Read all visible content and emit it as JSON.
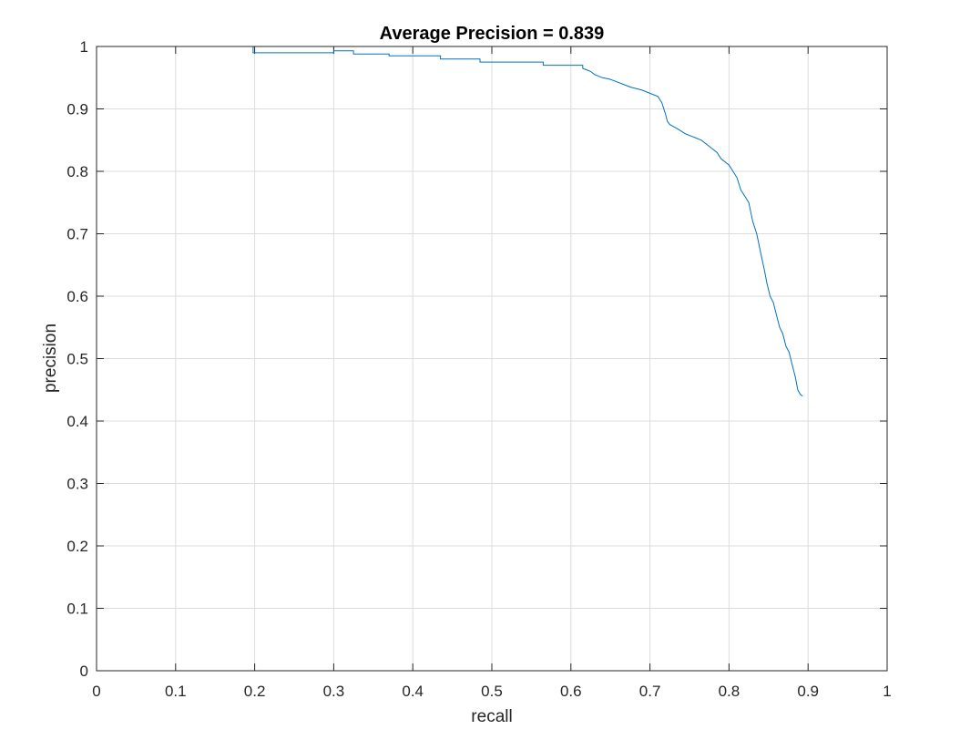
{
  "chart_data": {
    "type": "line",
    "title": "Average Precision = 0.839",
    "xlabel": "recall",
    "ylabel": "precision",
    "xlim": [
      0,
      1
    ],
    "ylim": [
      0,
      1
    ],
    "xticks": [
      "0",
      "0.1",
      "0.2",
      "0.3",
      "0.4",
      "0.5",
      "0.6",
      "0.7",
      "0.8",
      "0.9",
      "1"
    ],
    "yticks": [
      "0",
      "0.1",
      "0.2",
      "0.3",
      "0.4",
      "0.5",
      "0.6",
      "0.7",
      "0.8",
      "0.9",
      "1"
    ],
    "grid": true,
    "line_color": "#0072bd",
    "series": [
      {
        "x": [
          0,
          0.198,
          0.198,
          0.3,
          0.3,
          0.325,
          0.325,
          0.37,
          0.37,
          0.41,
          0.41,
          0.435,
          0.435,
          0.485,
          0.485,
          0.52,
          0.52,
          0.565,
          0.565,
          0.585,
          0.585,
          0.615,
          0.615,
          0.625,
          0.63,
          0.64,
          0.648,
          0.655,
          0.665,
          0.675,
          0.69,
          0.7,
          0.71,
          0.715,
          0.72,
          0.722,
          0.725,
          0.735,
          0.745,
          0.755,
          0.765,
          0.775,
          0.785,
          0.79,
          0.8,
          0.81,
          0.815,
          0.82,
          0.825,
          0.83,
          0.835,
          0.84,
          0.845,
          0.848,
          0.852,
          0.856,
          0.86,
          0.864,
          0.868,
          0.872,
          0.876,
          0.88,
          0.884,
          0.887,
          0.89,
          0.893
        ],
        "y": [
          1.0,
          1.0,
          0.99,
          0.99,
          0.993,
          0.993,
          0.988,
          0.988,
          0.985,
          0.985,
          0.985,
          0.985,
          0.98,
          0.98,
          0.975,
          0.975,
          0.975,
          0.975,
          0.97,
          0.97,
          0.97,
          0.97,
          0.965,
          0.96,
          0.955,
          0.95,
          0.948,
          0.945,
          0.94,
          0.935,
          0.93,
          0.925,
          0.92,
          0.91,
          0.89,
          0.88,
          0.875,
          0.868,
          0.86,
          0.855,
          0.85,
          0.84,
          0.83,
          0.82,
          0.81,
          0.79,
          0.77,
          0.76,
          0.75,
          0.72,
          0.7,
          0.67,
          0.64,
          0.62,
          0.6,
          0.59,
          0.57,
          0.55,
          0.54,
          0.52,
          0.51,
          0.49,
          0.47,
          0.45,
          0.443,
          0.44
        ]
      }
    ]
  }
}
